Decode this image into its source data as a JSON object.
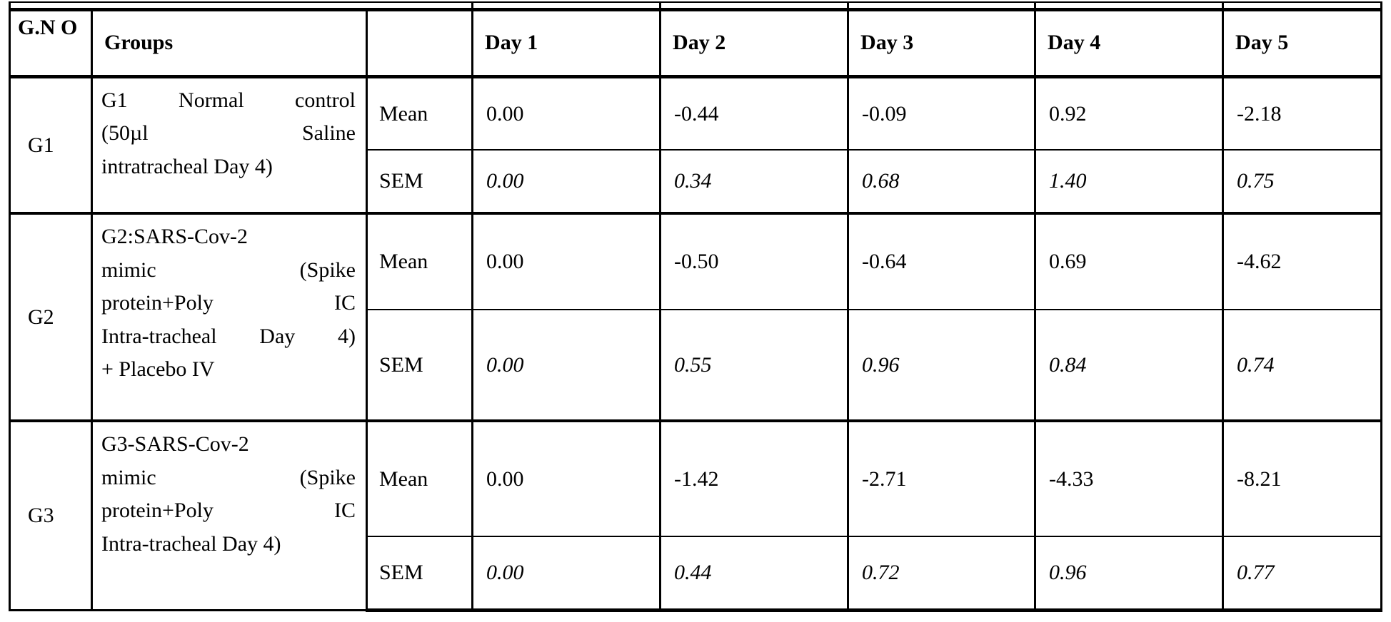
{
  "table": {
    "header": {
      "gno": "G.N O",
      "groups": "Groups",
      "stat": "",
      "days": [
        "Day 1",
        "Day 2",
        "Day 3",
        "Day 4",
        "Day 5"
      ]
    },
    "mean_label": "Mean",
    "sem_label": "SEM",
    "groups": [
      {
        "id": "G1",
        "desc_lines": [
          "G1 Normal control",
          "(50µl Saline",
          "intratracheal Day 4)"
        ],
        "mean": [
          "0.00",
          "-0.44",
          "-0.09",
          "0.92",
          "-2.18"
        ],
        "sem": [
          "0.00",
          "0.34",
          "0.68",
          "1.40",
          "0.75"
        ]
      },
      {
        "id": "G2",
        "desc_lines": [
          "G2:SARS-Cov-2",
          "mimic (Spike",
          "protein+Poly IC",
          "Intra-tracheal Day 4)",
          "+ Placebo IV"
        ],
        "mean": [
          "0.00",
          "-0.50",
          "-0.64",
          "0.69",
          "-4.62"
        ],
        "sem": [
          "0.00",
          "0.55",
          "0.96",
          "0.84",
          "0.74"
        ]
      },
      {
        "id": "G3",
        "desc_lines": [
          "G3-SARS-Cov-2",
          "mimic (Spike",
          "protein+Poly IC",
          "Intra-tracheal Day 4)"
        ],
        "mean": [
          "0.00",
          "-1.42",
          "-2.71",
          "-4.33",
          "-8.21"
        ],
        "sem": [
          "0.00",
          "0.44",
          "0.72",
          "0.96",
          "0.77"
        ]
      }
    ]
  }
}
